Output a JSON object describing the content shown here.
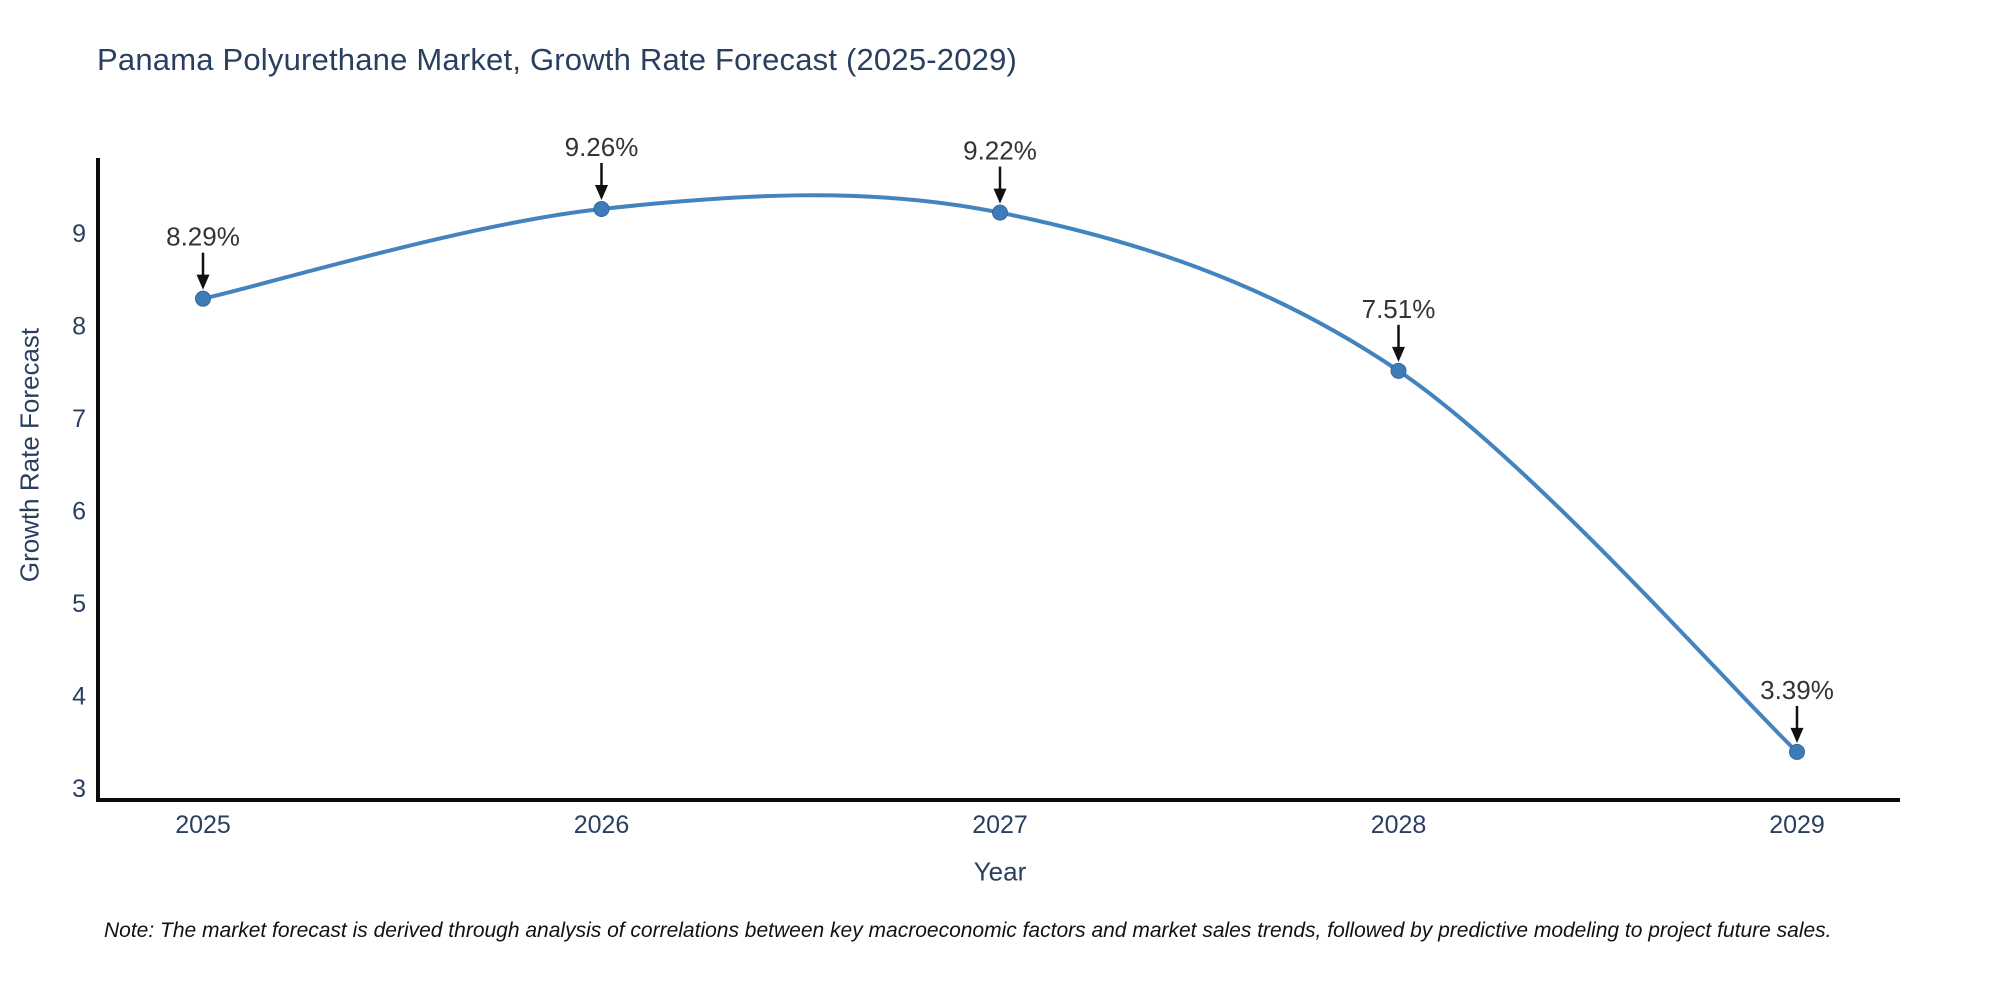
{
  "header": {
    "title": "Panama Polyurethane Market, Growth Rate Forecast (2025-2029)"
  },
  "chart_data": {
    "type": "line",
    "title": "Panama Polyurethane Market, Growth Rate Forecast (2025-2029)",
    "x": [
      "2025",
      "2026",
      "2027",
      "2028",
      "2029"
    ],
    "series": [
      {
        "name": "Growth Rate Forecast",
        "values": [
          8.29,
          9.26,
          9.22,
          7.51,
          3.39
        ]
      }
    ],
    "point_labels": [
      "8.29%",
      "9.26%",
      "9.22%",
      "7.51%",
      "3.39%"
    ],
    "xlabel": "Year",
    "ylabel": "Growth Rate Forecast",
    "yticks": [
      3,
      4,
      5,
      6,
      7,
      8,
      9
    ],
    "ylim": [
      2.87,
      9.8
    ],
    "line_shape": "spline",
    "grid": false,
    "legend": "none",
    "annotation_style": "label-with-arrow-pointing-down-to-marker",
    "colors": {
      "line": "#4484be",
      "marker": "#3d7cb8",
      "marker_edge": "#326a9e",
      "axis": "#0d0d0d",
      "tick_text": "#2a3f5f",
      "annotation_text": "#333333",
      "arrow": "#111111",
      "title_text": "#2a3f5f"
    }
  },
  "footer": {
    "note": "Note: The market forecast is derived through analysis of correlations between key macroeconomic factors and market sales trends, followed by predictive modeling to project future sales."
  }
}
